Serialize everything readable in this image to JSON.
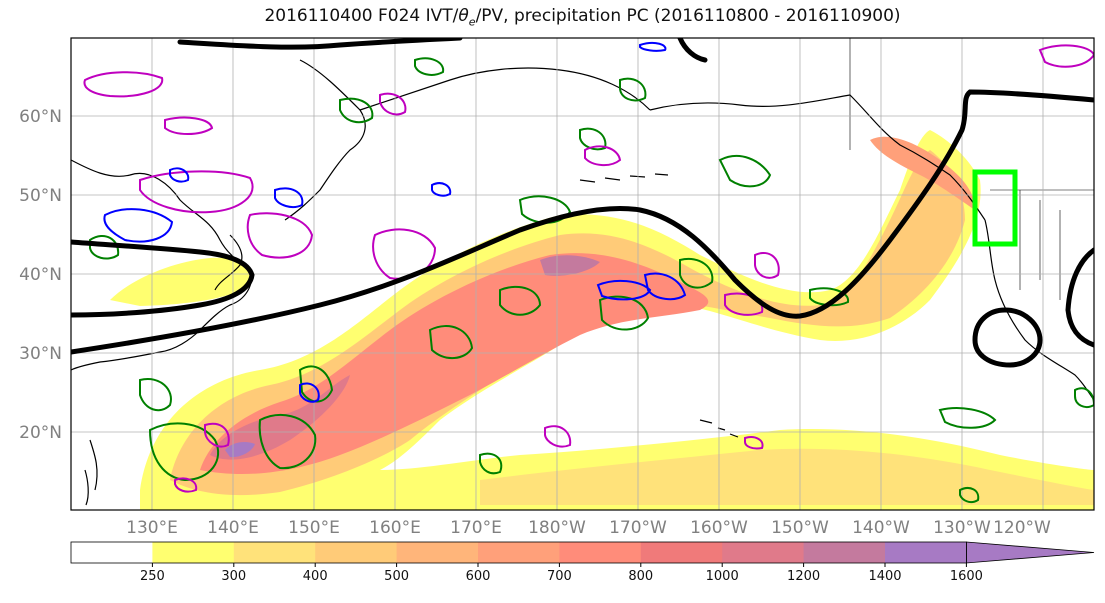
{
  "title": {
    "prefix": "2016110400 F024 IVT/",
    "theta": "θ",
    "theta_sub": "e",
    "suffix": "/PV, precipitation PC (2016110800 - 2016110900)"
  },
  "map": {
    "lat_labels": [
      "60°N",
      "50°N",
      "40°N",
      "30°N",
      "20°N"
    ],
    "lon_labels": [
      "130°E",
      "140°E",
      "150°E",
      "160°E",
      "170°E",
      "180°W",
      "170°W",
      "160°W",
      "150°W",
      "140°W",
      "130°W",
      "120°W"
    ],
    "colors": {
      "theta_e_contour": "#000000",
      "pv_positive": "#bf00bf",
      "pv_negative": "#0000ff",
      "precip_pc": "#008000",
      "region_box": "#00ff00",
      "coastline": "#000000",
      "grid": "#b0b0b0"
    }
  },
  "colorbar": {
    "levels": [
      "250",
      "300",
      "400",
      "500",
      "600",
      "700",
      "800",
      "1000",
      "1200",
      "1400",
      "1600"
    ],
    "colors": [
      "#ffffff",
      "#ffff70",
      "#ffe27a",
      "#ffcb78",
      "#ffb57a",
      "#ffa07a",
      "#ff8c7a",
      "#f07a7a",
      "#e07a8a",
      "#c47a9e",
      "#a77ac4"
    ],
    "extend": "max"
  }
}
